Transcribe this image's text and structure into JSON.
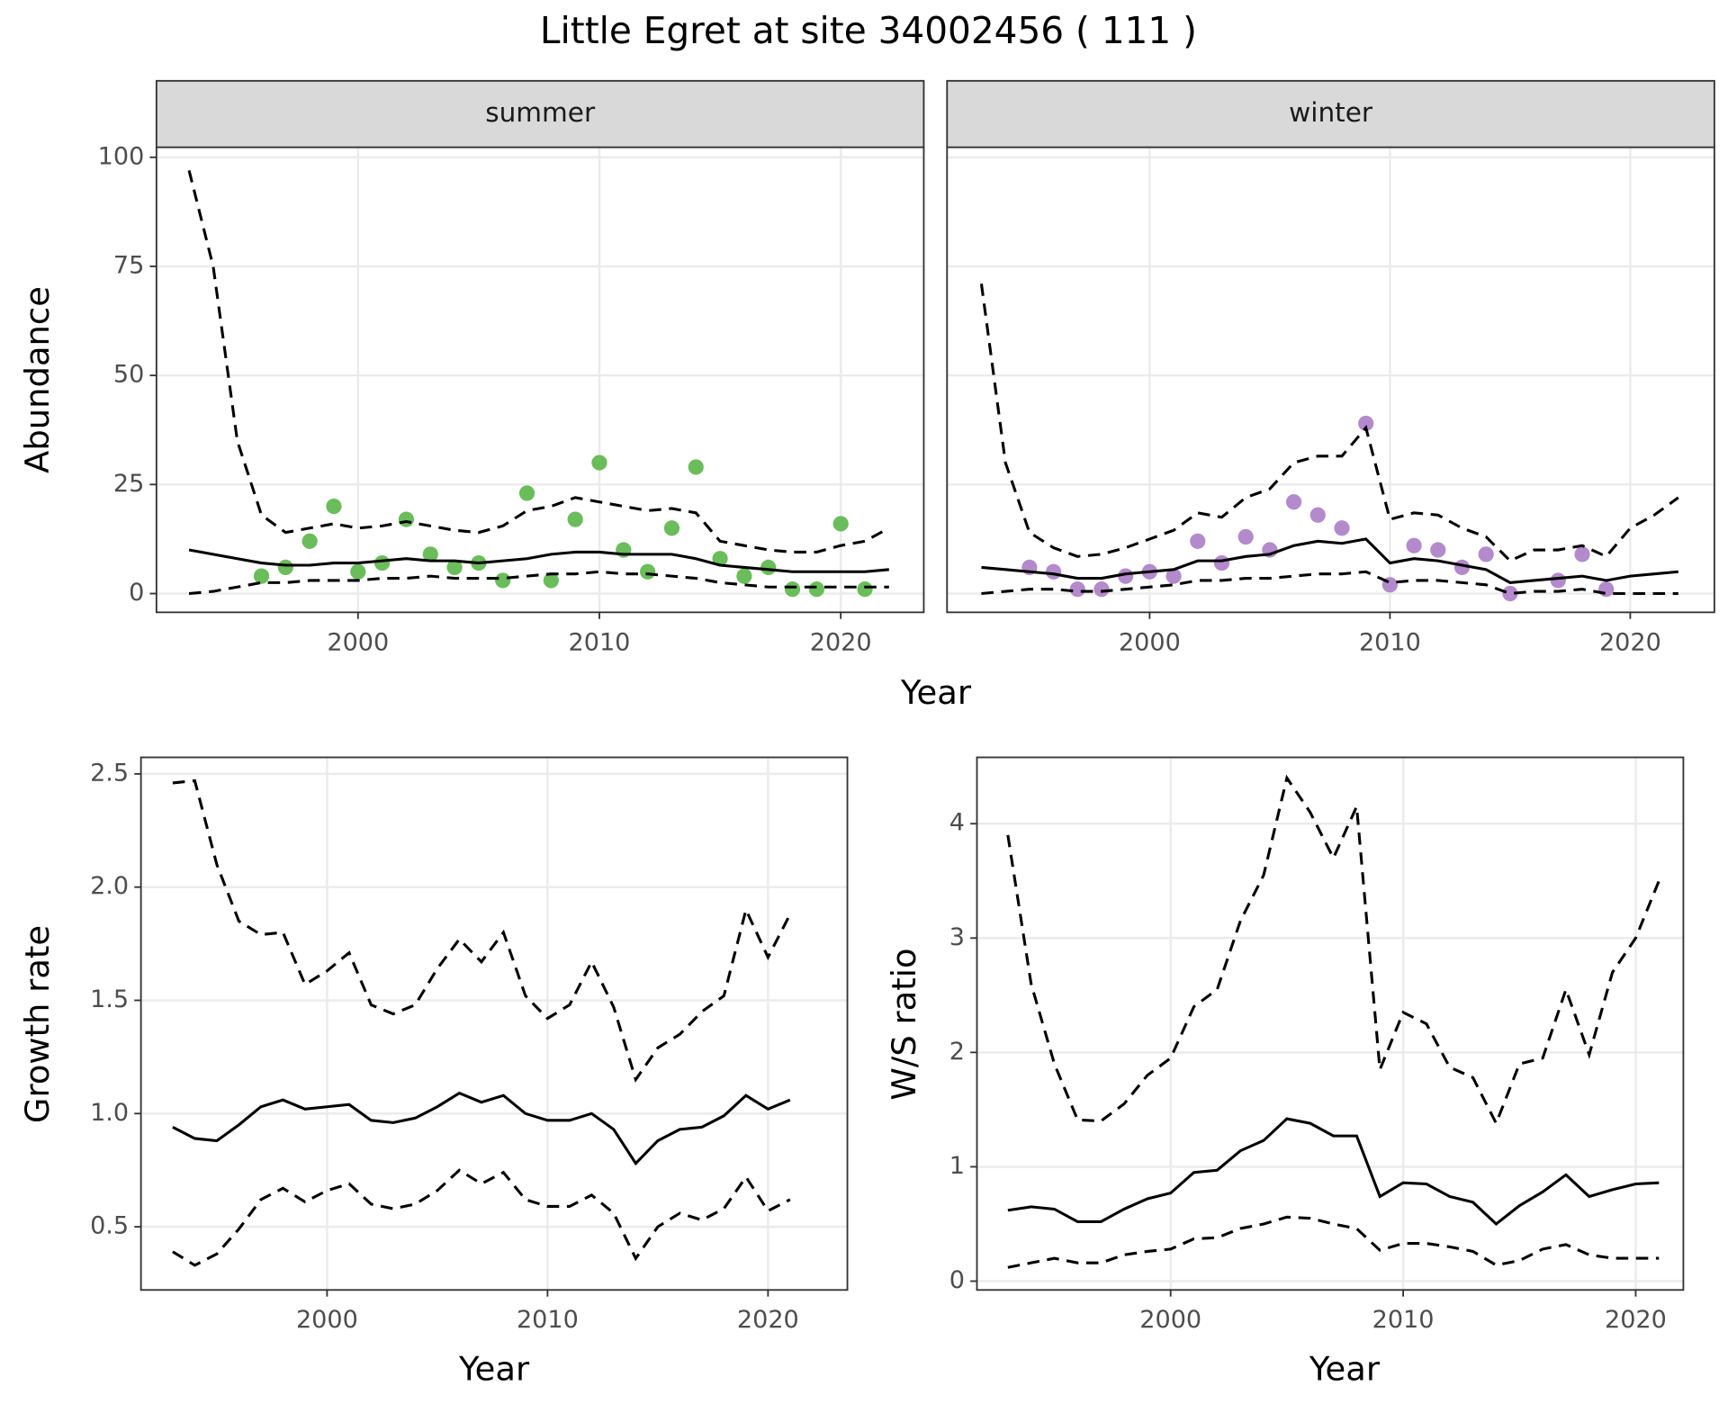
{
  "title": "Little Egret at site 34002456 ( 111 )",
  "chart_data": [
    {
      "type": "line",
      "title": "summer",
      "ylabel": "Abundance",
      "xlabel": "Year",
      "xlim": [
        1991.65,
        2023.44
      ],
      "ylim": [
        -4.3,
        102.3
      ],
      "xticks": [
        2000,
        2010,
        2020
      ],
      "yticks": [
        0,
        25,
        50,
        75,
        100
      ],
      "grid": true,
      "ytick_labels": true,
      "series": [
        {
          "type": "scatter",
          "color": "#6abd5a",
          "x": [
            1996,
            1997,
            1998,
            1999,
            2000,
            2001,
            2002,
            2003,
            2004,
            2005,
            2006,
            2007,
            2008,
            2009,
            2010,
            2011,
            2012,
            2013,
            2014,
            2015,
            2016,
            2017,
            2018,
            2019,
            2020,
            2021
          ],
          "values": [
            4,
            6,
            12,
            20,
            5,
            7,
            17,
            9,
            6,
            7,
            3,
            23,
            3,
            17,
            30,
            10,
            5,
            15,
            29,
            8,
            4,
            6,
            1,
            1,
            16,
            1
          ]
        },
        {
          "type": "line",
          "color": "#000000",
          "linestyle": "solid",
          "x": [
            1993,
            1994,
            1995,
            1996,
            1997,
            1998,
            1999,
            2000,
            2001,
            2002,
            2003,
            2004,
            2005,
            2006,
            2007,
            2008,
            2009,
            2010,
            2011,
            2012,
            2013,
            2014,
            2015,
            2016,
            2017,
            2018,
            2019,
            2020,
            2021,
            2022
          ],
          "values": [
            10,
            9,
            8,
            7,
            6.5,
            6.5,
            7,
            7,
            7.5,
            8,
            7.5,
            7.5,
            7,
            7.5,
            8,
            9,
            9.5,
            9.5,
            9,
            9,
            9,
            8,
            6.5,
            6,
            5.5,
            5,
            5,
            5,
            5,
            5.5
          ]
        },
        {
          "type": "line",
          "color": "#000000",
          "linestyle": "dashed",
          "x": [
            1993,
            1994,
            1995,
            1996,
            1997,
            1998,
            1999,
            2000,
            2001,
            2002,
            2003,
            2004,
            2005,
            2006,
            2007,
            2008,
            2009,
            2010,
            2011,
            2012,
            2013,
            2014,
            2015,
            2016,
            2017,
            2018,
            2019,
            2020,
            2021,
            2022
          ],
          "values": [
            97,
            75,
            35,
            18,
            14,
            15,
            16,
            15,
            15.5,
            16.5,
            15.5,
            14.5,
            14,
            15.5,
            19,
            20,
            22,
            21,
            20,
            19,
            19.5,
            18.5,
            12,
            11,
            10,
            9.5,
            9.5,
            11,
            12,
            15
          ]
        },
        {
          "type": "line",
          "color": "#000000",
          "linestyle": "dashed",
          "x": [
            1993,
            1994,
            1995,
            1996,
            1997,
            1998,
            1999,
            2000,
            2001,
            2002,
            2003,
            2004,
            2005,
            2006,
            2007,
            2008,
            2009,
            2010,
            2011,
            2012,
            2013,
            2014,
            2015,
            2016,
            2017,
            2018,
            2019,
            2020,
            2021,
            2022
          ],
          "values": [
            0,
            0.5,
            1.5,
            2.5,
            2.5,
            3,
            3,
            3,
            3.5,
            3.5,
            4,
            3.5,
            3.5,
            3.5,
            4,
            4.5,
            4.5,
            5,
            4.5,
            4.5,
            4,
            3.5,
            2.5,
            2,
            1.5,
            1.5,
            1.5,
            1.5,
            1.5,
            1.5
          ]
        }
      ]
    },
    {
      "type": "line",
      "title": "winter",
      "xlim": [
        1991.57,
        2023.5
      ],
      "ylim": [
        -4.3,
        102.3
      ],
      "xticks": [
        2000,
        2010,
        2020
      ],
      "yticks": [
        0,
        25,
        50,
        75,
        100
      ],
      "grid": true,
      "ytick_labels": false,
      "series": [
        {
          "type": "scatter",
          "color": "#b38acb",
          "x": [
            1995,
            1996,
            1997,
            1998,
            1999,
            2000,
            2001,
            2002,
            2003,
            2004,
            2005,
            2006,
            2007,
            2008,
            2009,
            2010,
            2011,
            2012,
            2013,
            2014,
            2015,
            2017,
            2018,
            2019
          ],
          "values": [
            6,
            5,
            1,
            1,
            4,
            5,
            4,
            12,
            7,
            13,
            10,
            21,
            18,
            15,
            39,
            2,
            11,
            10,
            6,
            9,
            0,
            3,
            9,
            1
          ]
        },
        {
          "type": "line",
          "color": "#000000",
          "linestyle": "solid",
          "x": [
            1993,
            1994,
            1995,
            1996,
            1997,
            1998,
            1999,
            2000,
            2001,
            2002,
            2003,
            2004,
            2005,
            2006,
            2007,
            2008,
            2009,
            2010,
            2011,
            2012,
            2013,
            2014,
            2015,
            2016,
            2017,
            2018,
            2019,
            2020,
            2021,
            2022
          ],
          "values": [
            6,
            5.5,
            5,
            4.5,
            3.5,
            3.5,
            4.5,
            5,
            5.5,
            7.5,
            7.5,
            8.5,
            9,
            11,
            12,
            11.5,
            12.5,
            7,
            8,
            7.5,
            6.5,
            5.5,
            2.5,
            3,
            3.5,
            4,
            3,
            4,
            4.5,
            5
          ]
        },
        {
          "type": "line",
          "color": "#000000",
          "linestyle": "dashed",
          "x": [
            1993,
            1994,
            1995,
            1996,
            1997,
            1998,
            1999,
            2000,
            2001,
            2002,
            2003,
            2004,
            2005,
            2006,
            2007,
            2008,
            2009,
            2010,
            2011,
            2012,
            2013,
            2014,
            2015,
            2016,
            2017,
            2018,
            2019,
            2020,
            2021,
            2022
          ],
          "values": [
            71,
            30,
            14,
            10.5,
            8.5,
            9,
            10.5,
            12.5,
            14.5,
            18.5,
            17.5,
            22,
            24,
            30,
            31.5,
            31.5,
            38,
            17,
            18.5,
            18,
            15,
            13,
            7.5,
            10,
            10,
            11,
            8.5,
            15,
            18,
            22
          ]
        },
        {
          "type": "line",
          "color": "#000000",
          "linestyle": "dashed",
          "x": [
            1993,
            1994,
            1995,
            1996,
            1997,
            1998,
            1999,
            2000,
            2001,
            2002,
            2003,
            2004,
            2005,
            2006,
            2007,
            2008,
            2009,
            2010,
            2011,
            2012,
            2013,
            2014,
            2015,
            2016,
            2017,
            2018,
            2019,
            2020,
            2021,
            2022
          ],
          "values": [
            0,
            0.5,
            1,
            1,
            0.5,
            0.5,
            1,
            1.5,
            2,
            3,
            3,
            3.5,
            3.5,
            4,
            4.5,
            4.5,
            5,
            2.5,
            3,
            3,
            2.5,
            2,
            0,
            0.5,
            0.5,
            1,
            0,
            0,
            0,
            0
          ]
        }
      ]
    },
    {
      "type": "line",
      "ylabel": "Growth rate",
      "xlabel": "Year",
      "xlim": [
        1991.56,
        2023.6
      ],
      "ylim": [
        0.221,
        2.573
      ],
      "xticks": [
        2000,
        2010,
        2020
      ],
      "yticks": [
        0.5,
        {
          "value": 1,
          "label": "1.0"
        },
        1.5,
        {
          "value": 2,
          "label": "2.0"
        },
        2.5
      ],
      "grid": true,
      "ytick_labels": true,
      "series": [
        {
          "type": "line",
          "color": "#000000",
          "linestyle": "solid",
          "x": [
            1993,
            1994,
            1995,
            1996,
            1997,
            1998,
            1999,
            2000,
            2001,
            2002,
            2003,
            2004,
            2005,
            2006,
            2007,
            2008,
            2009,
            2010,
            2011,
            2012,
            2013,
            2014,
            2015,
            2016,
            2017,
            2018,
            2019,
            2020,
            2021
          ],
          "values": [
            0.94,
            0.89,
            0.88,
            0.95,
            1.03,
            1.06,
            1.02,
            1.03,
            1.04,
            0.97,
            0.96,
            0.98,
            1.03,
            1.09,
            1.05,
            1.08,
            1.0,
            0.97,
            0.97,
            1.0,
            0.93,
            0.78,
            0.88,
            0.93,
            0.94,
            0.99,
            1.08,
            1.02,
            1.06
          ]
        },
        {
          "type": "line",
          "color": "#000000",
          "linestyle": "dashed",
          "x": [
            1993,
            1994,
            1995,
            1996,
            1997,
            1998,
            1999,
            2000,
            2001,
            2002,
            2003,
            2004,
            2005,
            2006,
            2007,
            2008,
            2009,
            2010,
            2011,
            2012,
            2013,
            2014,
            2015,
            2016,
            2017,
            2018,
            2019,
            2020,
            2021
          ],
          "values": [
            2.46,
            2.47,
            2.1,
            1.85,
            1.79,
            1.8,
            1.57,
            1.63,
            1.71,
            1.48,
            1.44,
            1.48,
            1.64,
            1.77,
            1.67,
            1.8,
            1.52,
            1.42,
            1.48,
            1.67,
            1.47,
            1.15,
            1.29,
            1.35,
            1.45,
            1.52,
            1.9,
            1.69,
            1.88
          ]
        },
        {
          "type": "line",
          "color": "#000000",
          "linestyle": "dashed",
          "x": [
            1993,
            1994,
            1995,
            1996,
            1997,
            1998,
            1999,
            2000,
            2001,
            2002,
            2003,
            2004,
            2005,
            2006,
            2007,
            2008,
            2009,
            2010,
            2011,
            2012,
            2013,
            2014,
            2015,
            2016,
            2017,
            2018,
            2019,
            2020,
            2021
          ],
          "values": [
            0.39,
            0.33,
            0.38,
            0.49,
            0.62,
            0.67,
            0.61,
            0.66,
            0.69,
            0.6,
            0.58,
            0.6,
            0.66,
            0.75,
            0.69,
            0.74,
            0.62,
            0.59,
            0.59,
            0.64,
            0.56,
            0.36,
            0.5,
            0.56,
            0.53,
            0.58,
            0.72,
            0.57,
            0.62
          ]
        }
      ]
    },
    {
      "type": "line",
      "ylabel": "W/S ratio",
      "xlabel": "Year",
      "xlim": [
        1991.67,
        2022.05
      ],
      "ylim": [
        -0.077,
        4.58
      ],
      "xticks": [
        2000,
        2010,
        2020
      ],
      "yticks": [
        0,
        1,
        2,
        3,
        4
      ],
      "grid": true,
      "ytick_labels": true,
      "series": [
        {
          "type": "line",
          "color": "#000000",
          "linestyle": "solid",
          "x": [
            1993,
            1994,
            1995,
            1996,
            1997,
            1998,
            1999,
            2000,
            2001,
            2002,
            2003,
            2004,
            2005,
            2006,
            2007,
            2008,
            2009,
            2010,
            2011,
            2012,
            2013,
            2014,
            2015,
            2016,
            2017,
            2018,
            2019,
            2020,
            2021
          ],
          "values": [
            0.62,
            0.65,
            0.63,
            0.52,
            0.52,
            0.63,
            0.72,
            0.77,
            0.95,
            0.97,
            1.14,
            1.23,
            1.42,
            1.38,
            1.27,
            1.27,
            0.74,
            0.86,
            0.85,
            0.74,
            0.69,
            0.5,
            0.66,
            0.78,
            0.93,
            0.74,
            0.8,
            0.85,
            0.86
          ]
        },
        {
          "type": "line",
          "color": "#000000",
          "linestyle": "dashed",
          "x": [
            1993,
            1994,
            1995,
            1996,
            1997,
            1998,
            1999,
            2000,
            2001,
            2002,
            2003,
            2004,
            2005,
            2006,
            2007,
            2008,
            2009,
            2010,
            2011,
            2012,
            2013,
            2014,
            2015,
            2016,
            2017,
            2018,
            2019,
            2020,
            2021
          ],
          "values": [
            3.9,
            2.6,
            1.9,
            1.41,
            1.4,
            1.55,
            1.8,
            1.95,
            2.4,
            2.55,
            3.15,
            3.55,
            4.4,
            4.1,
            3.7,
            4.15,
            1.85,
            2.35,
            2.25,
            1.87,
            1.78,
            1.38,
            1.9,
            1.95,
            2.55,
            1.98,
            2.7,
            3.0,
            3.5
          ]
        },
        {
          "type": "line",
          "color": "#000000",
          "linestyle": "dashed",
          "x": [
            1993,
            1994,
            1995,
            1996,
            1997,
            1998,
            1999,
            2000,
            2001,
            2002,
            2003,
            2004,
            2005,
            2006,
            2007,
            2008,
            2009,
            2010,
            2011,
            2012,
            2013,
            2014,
            2015,
            2016,
            2017,
            2018,
            2019,
            2020,
            2021
          ],
          "values": [
            0.12,
            0.16,
            0.2,
            0.16,
            0.16,
            0.23,
            0.26,
            0.28,
            0.37,
            0.38,
            0.46,
            0.5,
            0.56,
            0.55,
            0.5,
            0.46,
            0.27,
            0.33,
            0.33,
            0.3,
            0.26,
            0.14,
            0.18,
            0.28,
            0.32,
            0.23,
            0.2,
            0.2,
            0.2
          ]
        }
      ]
    }
  ]
}
